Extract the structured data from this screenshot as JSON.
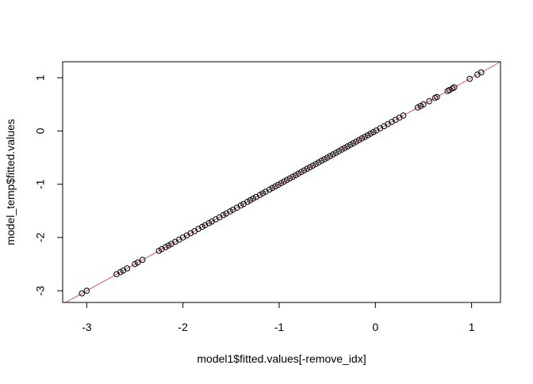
{
  "chart_data": {
    "type": "scatter",
    "title": "",
    "xlabel": "model1$fitted.values[-remove_idx]",
    "ylabel": "model_temp$fitted.values",
    "xlim": [
      -3.25,
      1.3
    ],
    "ylim": [
      -3.22,
      1.3
    ],
    "x_ticks": [
      -3,
      -2,
      -1,
      0,
      1
    ],
    "x_tick_labels": [
      "-3",
      "-2",
      "-1",
      "0",
      "1"
    ],
    "y_ticks": [
      -3,
      -2,
      -1,
      0,
      1
    ],
    "y_tick_labels": [
      "-3",
      "-2",
      "-1",
      "0",
      "1"
    ],
    "grid": false,
    "legend": "none",
    "point_style": "open-circle",
    "point_color": "#000000",
    "reference_line": {
      "intercept": 0,
      "slope": 1,
      "color": "#df536b"
    },
    "series": [
      {
        "x": [
          -3.05,
          -3.0,
          -2.69,
          -2.65,
          -2.62,
          -2.58,
          -2.5,
          -2.47,
          -2.42,
          -2.25,
          -2.22,
          -2.18,
          -2.15,
          -2.12,
          -2.08,
          -2.04,
          -2.0,
          -1.96,
          -1.92,
          -1.88,
          -1.84,
          -1.8,
          -1.77,
          -1.73,
          -1.7,
          -1.66,
          -1.62,
          -1.58,
          -1.55,
          -1.51,
          -1.48,
          -1.44,
          -1.4,
          -1.37,
          -1.33,
          -1.3,
          -1.27,
          -1.24,
          -1.2,
          -1.17,
          -1.14,
          -1.1,
          -1.07,
          -1.04,
          -1.01,
          -0.98,
          -0.95,
          -0.92,
          -0.89,
          -0.86,
          -0.83,
          -0.8,
          -0.77,
          -0.74,
          -0.71,
          -0.68,
          -0.65,
          -0.62,
          -0.59,
          -0.56,
          -0.53,
          -0.5,
          -0.47,
          -0.44,
          -0.41,
          -0.38,
          -0.35,
          -0.32,
          -0.29,
          -0.26,
          -0.23,
          -0.2,
          -0.17,
          -0.14,
          -0.11,
          -0.08,
          -0.05,
          -0.02,
          0.01,
          0.05,
          0.09,
          0.13,
          0.17,
          0.21,
          0.25,
          0.29,
          0.44,
          0.47,
          0.5,
          0.56,
          0.62,
          0.64,
          0.75,
          0.77,
          0.8,
          0.82,
          0.98,
          1.06,
          1.1
        ],
        "y": [
          -3.05,
          -3.0,
          -2.69,
          -2.65,
          -2.62,
          -2.58,
          -2.5,
          -2.47,
          -2.42,
          -2.25,
          -2.22,
          -2.18,
          -2.15,
          -2.12,
          -2.08,
          -2.04,
          -2.0,
          -1.96,
          -1.92,
          -1.88,
          -1.84,
          -1.8,
          -1.77,
          -1.73,
          -1.7,
          -1.66,
          -1.62,
          -1.58,
          -1.55,
          -1.51,
          -1.48,
          -1.44,
          -1.4,
          -1.37,
          -1.33,
          -1.3,
          -1.27,
          -1.24,
          -1.2,
          -1.17,
          -1.14,
          -1.1,
          -1.07,
          -1.04,
          -1.01,
          -0.98,
          -0.95,
          -0.92,
          -0.89,
          -0.86,
          -0.83,
          -0.8,
          -0.77,
          -0.74,
          -0.71,
          -0.68,
          -0.65,
          -0.62,
          -0.59,
          -0.56,
          -0.53,
          -0.5,
          -0.47,
          -0.44,
          -0.41,
          -0.38,
          -0.35,
          -0.32,
          -0.29,
          -0.26,
          -0.23,
          -0.2,
          -0.17,
          -0.14,
          -0.11,
          -0.08,
          -0.05,
          -0.02,
          0.01,
          0.05,
          0.09,
          0.13,
          0.17,
          0.21,
          0.25,
          0.29,
          0.44,
          0.47,
          0.5,
          0.56,
          0.62,
          0.64,
          0.75,
          0.77,
          0.8,
          0.82,
          0.98,
          1.06,
          1.1
        ]
      }
    ]
  }
}
